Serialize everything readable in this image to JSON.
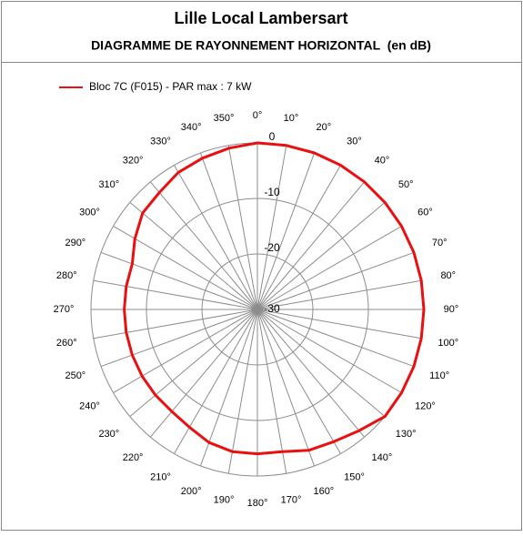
{
  "chart_data": {
    "type": "polar",
    "title": "Lille Local Lambersart",
    "subtitle": "DIAGRAMME DE RAYONNEMENT HORIZONTAL  (en dB)",
    "categories": [
      "0°",
      "10°",
      "20°",
      "30°",
      "40°",
      "50°",
      "60°",
      "70°",
      "80°",
      "90°",
      "100°",
      "110°",
      "120°",
      "130°",
      "140°",
      "150°",
      "160°",
      "170°",
      "180°",
      "190°",
      "200°",
      "210°",
      "220°",
      "230°",
      "240°",
      "250°",
      "260°",
      "270°",
      "280°",
      "290°",
      "300°",
      "310°",
      "320°",
      "330°",
      "340°",
      "350°"
    ],
    "series": [
      {
        "name": "Bloc 7C (F015) - PAR max : 7 kW",
        "color": "#e81010",
        "values": [
          0,
          0,
          0,
          0,
          0,
          0,
          0,
          0,
          0,
          0,
          0,
          0,
          0,
          0,
          -1.5,
          -2.5,
          -3,
          -4,
          -4,
          -4,
          -4.5,
          -5.5,
          -6,
          -6,
          -6,
          -6,
          -6,
          -6,
          -6,
          -6,
          -4.5,
          -3,
          -2.5,
          -1.5,
          -1,
          -0.5
        ]
      }
    ],
    "ylim": [
      -30,
      0
    ],
    "yticks": [
      0,
      -10,
      -20,
      -30
    ],
    "grid": true
  }
}
